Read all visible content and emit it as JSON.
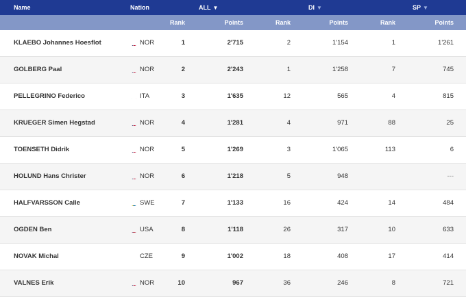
{
  "header": {
    "name": "Name",
    "nation": "Nation",
    "all": "ALL",
    "di": "DI",
    "sp": "SP",
    "sort_arrow": "▼"
  },
  "subheader": {
    "rank": "Rank",
    "points": "Points"
  },
  "colors": {
    "header_bg": "#1f3a93",
    "subheader_bg": "#8397c7"
  },
  "rows": [
    {
      "name": "KLAEBO Johannes Hoesflot",
      "nation": "NOR",
      "flag": "nor-flag-icon",
      "all_rank": "1",
      "all_points": "2'715",
      "di_rank": "2",
      "di_points": "1'154",
      "sp_rank": "1",
      "sp_points": "1'261"
    },
    {
      "name": "GOLBERG Paal",
      "nation": "NOR",
      "flag": "nor-flag-icon",
      "all_rank": "2",
      "all_points": "2'243",
      "di_rank": "1",
      "di_points": "1'258",
      "sp_rank": "7",
      "sp_points": "745"
    },
    {
      "name": "PELLEGRINO Federico",
      "nation": "ITA",
      "flag": "ita-flag-icon",
      "all_rank": "3",
      "all_points": "1'635",
      "di_rank": "12",
      "di_points": "565",
      "sp_rank": "4",
      "sp_points": "815"
    },
    {
      "name": "KRUEGER Simen Hegstad",
      "nation": "NOR",
      "flag": "nor-flag-icon",
      "all_rank": "4",
      "all_points": "1'281",
      "di_rank": "4",
      "di_points": "971",
      "sp_rank": "88",
      "sp_points": "25"
    },
    {
      "name": "TOENSETH Didrik",
      "nation": "NOR",
      "flag": "nor-flag-icon",
      "all_rank": "5",
      "all_points": "1'269",
      "di_rank": "3",
      "di_points": "1'065",
      "sp_rank": "113",
      "sp_points": "6"
    },
    {
      "name": "HOLUND Hans Christer",
      "nation": "NOR",
      "flag": "nor-flag-icon",
      "all_rank": "6",
      "all_points": "1'218",
      "di_rank": "5",
      "di_points": "948",
      "sp_rank": "",
      "sp_points": "---"
    },
    {
      "name": "HALFVARSSON Calle",
      "nation": "SWE",
      "flag": "swe-flag-icon",
      "all_rank": "7",
      "all_points": "1'133",
      "di_rank": "16",
      "di_points": "424",
      "sp_rank": "14",
      "sp_points": "484"
    },
    {
      "name": "OGDEN Ben",
      "nation": "USA",
      "flag": "usa-flag-icon",
      "all_rank": "8",
      "all_points": "1'118",
      "di_rank": "26",
      "di_points": "317",
      "sp_rank": "10",
      "sp_points": "633"
    },
    {
      "name": "NOVAK Michal",
      "nation": "CZE",
      "flag": "cze-flag-icon",
      "all_rank": "9",
      "all_points": "1'002",
      "di_rank": "18",
      "di_points": "408",
      "sp_rank": "17",
      "sp_points": "414"
    },
    {
      "name": "VALNES Erik",
      "nation": "NOR",
      "flag": "nor-flag-icon",
      "all_rank": "10",
      "all_points": "967",
      "di_rank": "36",
      "di_points": "246",
      "sp_rank": "8",
      "sp_points": "721"
    }
  ]
}
